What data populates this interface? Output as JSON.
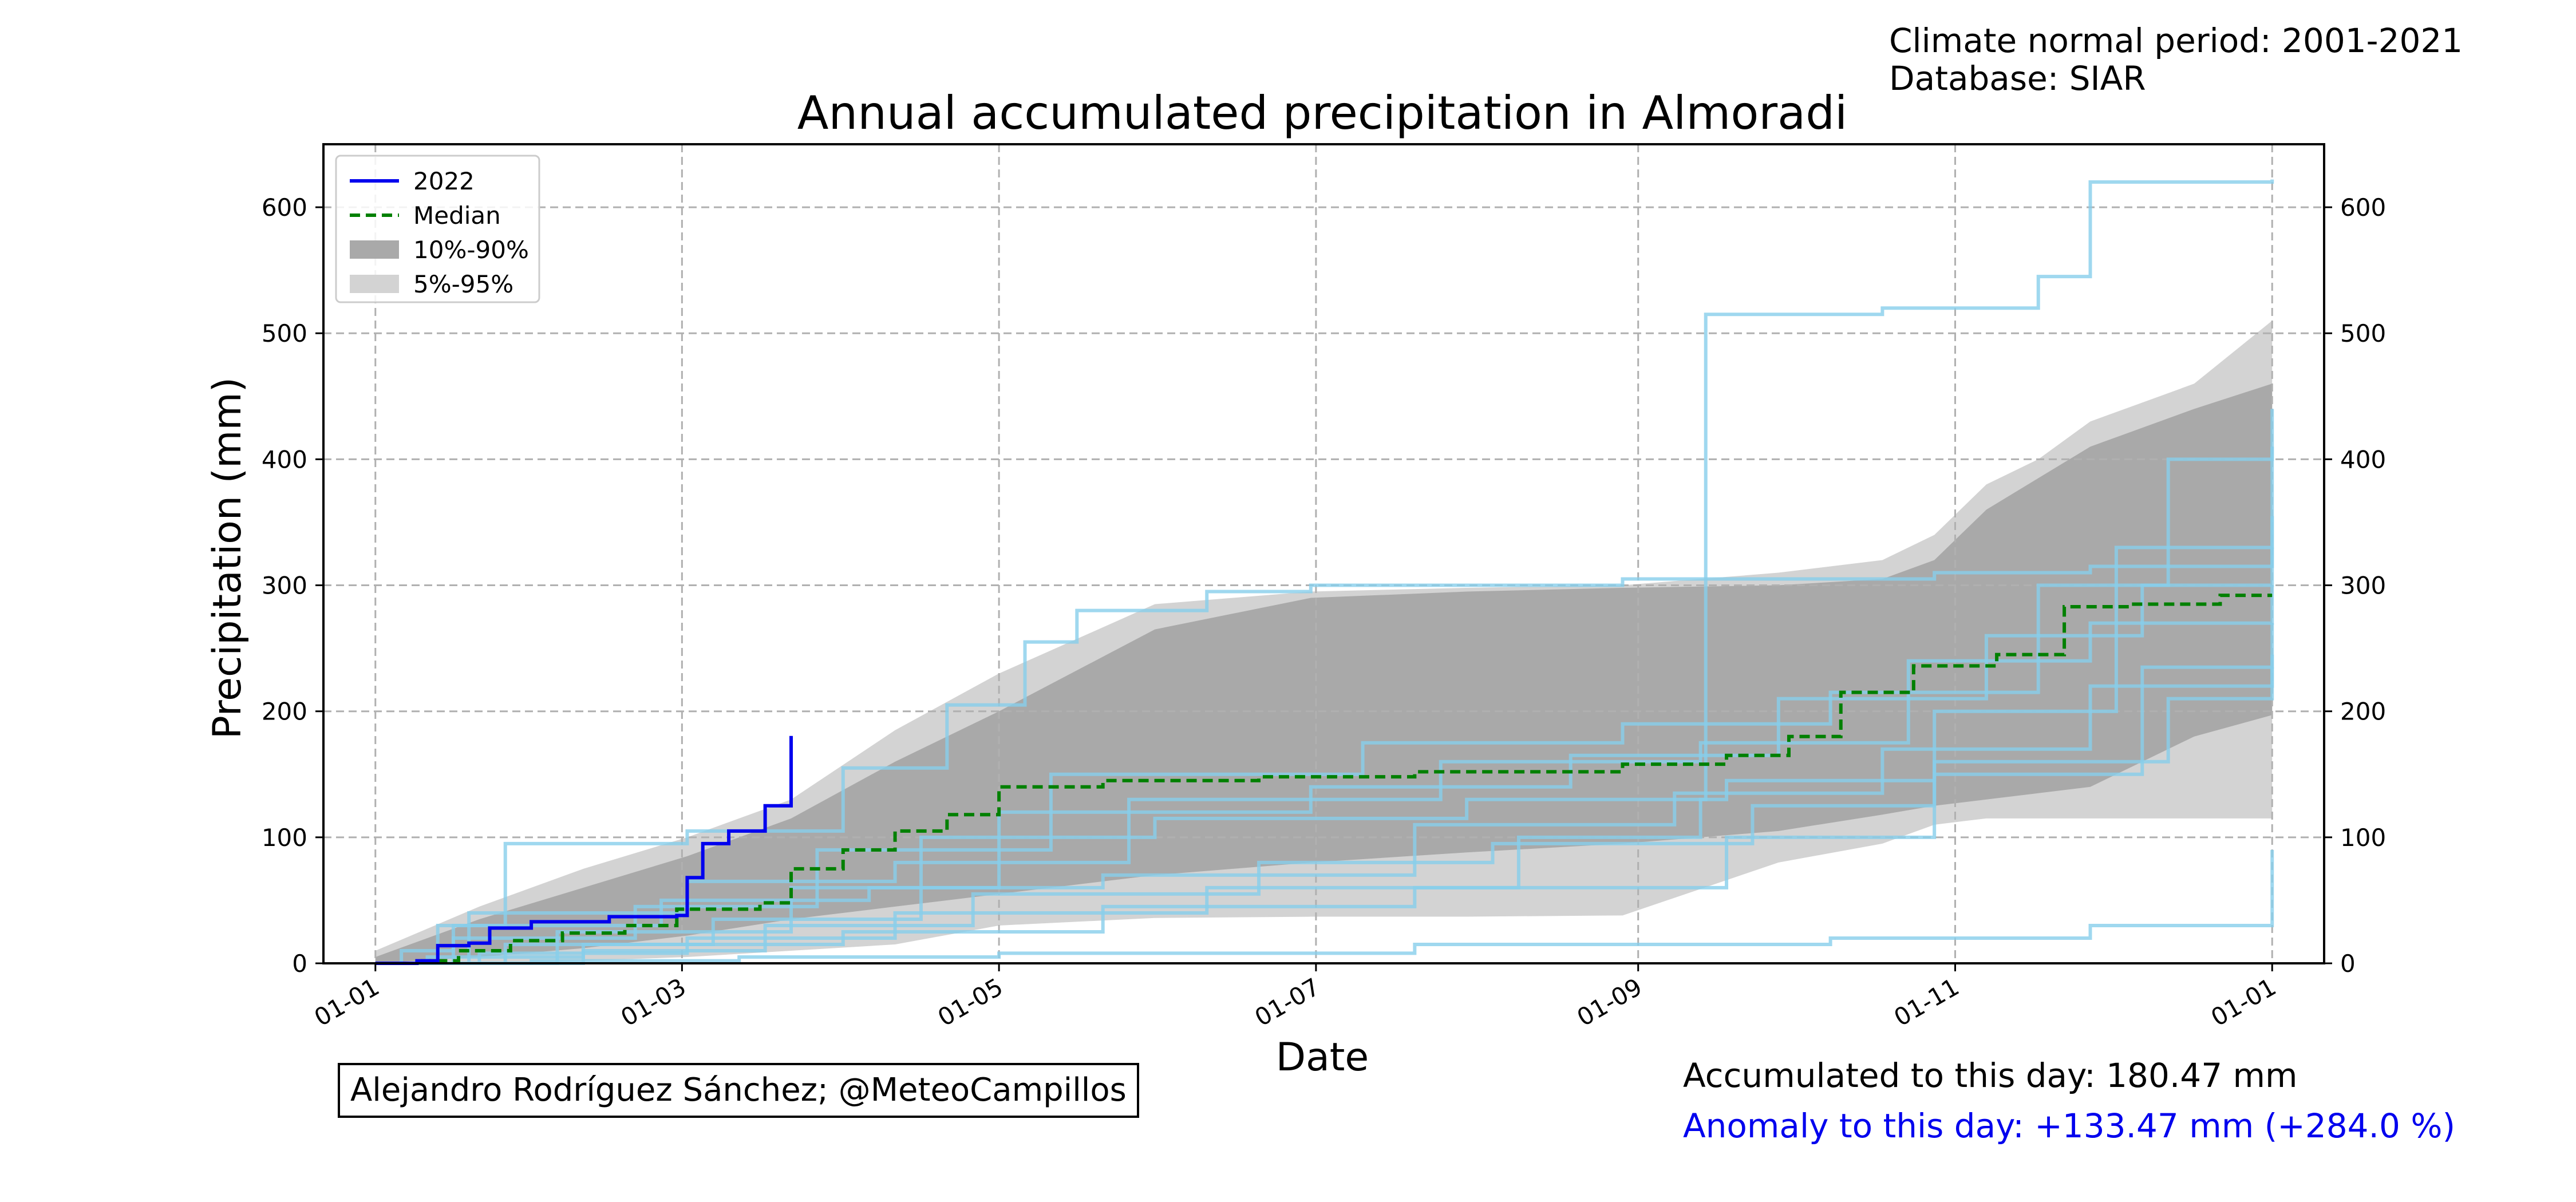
{
  "colors": {
    "current": "#0000ee",
    "median": "#008000",
    "band_inner": "#a9a9a9",
    "band_outer": "#d3d3d3",
    "history": "#87ceeb",
    "anomaly": "#0000ee"
  },
  "header": {
    "climate_period": "Climate normal period: 2001-2021",
    "database": "Database: SIAR"
  },
  "footer": {
    "credit": "Alejandro Rodríguez Sánchez; @MeteoCampillos",
    "accumulated": "Accumulated to this day: 180.47 mm",
    "anomaly": "Anomaly to this day: +133.47 mm (+284.0 %)"
  },
  "chart_data": {
    "type": "line",
    "title": "Annual accumulated precipitation in Almoradi",
    "xlabel": "Date",
    "ylabel": "Precipitation (mm)",
    "x_ticks": [
      "01-01",
      "01-03",
      "01-05",
      "01-07",
      "01-09",
      "01-11",
      "01-01"
    ],
    "x_tick_days": [
      0,
      59,
      120,
      181,
      243,
      304,
      365
    ],
    "y_ticks": [
      0,
      100,
      200,
      300,
      400,
      500,
      600
    ],
    "xlim": [
      -10,
      375
    ],
    "ylim": [
      0,
      650
    ],
    "grid": true,
    "legend_position": "top-left",
    "legend": [
      "2022",
      "Median",
      "10%-90%",
      "5%-95%"
    ],
    "series": [
      {
        "name": "2022",
        "x": [
          0,
          8,
          12,
          18,
          22,
          30,
          45,
          58,
          60,
          63,
          68,
          75,
          80
        ],
        "y": [
          0,
          2,
          14,
          16,
          28,
          33,
          37,
          38,
          68,
          95,
          105,
          125,
          180.47
        ]
      },
      {
        "name": "Median",
        "x": [
          0,
          8,
          16,
          26,
          36,
          48,
          58,
          74,
          80,
          90,
          100,
          110,
          120,
          140,
          170,
          200,
          240,
          260,
          272,
          282,
          296,
          312,
          325,
          338,
          355,
          365
        ],
        "y": [
          0,
          2,
          10,
          18,
          24,
          30,
          43,
          48,
          75,
          90,
          105,
          118,
          140,
          145,
          148,
          152,
          158,
          165,
          180,
          215,
          236,
          245,
          283,
          285,
          292,
          292
        ]
      }
    ],
    "bands": [
      {
        "name": "5%-95%",
        "x": [
          0,
          20,
          40,
          60,
          80,
          100,
          120,
          150,
          180,
          210,
          240,
          270,
          290,
          300,
          310,
          320,
          330,
          340,
          350,
          365
        ],
        "lower": [
          0,
          0,
          2,
          5,
          10,
          15,
          30,
          36,
          37,
          37,
          38,
          80,
          95,
          110,
          115,
          115,
          115,
          115,
          115,
          115
        ],
        "upper": [
          10,
          45,
          75,
          100,
          130,
          185,
          230,
          285,
          295,
          298,
          300,
          310,
          320,
          340,
          380,
          400,
          430,
          445,
          460,
          510
        ]
      },
      {
        "name": "10%-90%",
        "x": [
          0,
          20,
          40,
          60,
          80,
          100,
          120,
          150,
          180,
          210,
          240,
          270,
          290,
          300,
          310,
          320,
          330,
          340,
          350,
          365
        ],
        "lower": [
          0,
          5,
          12,
          22,
          35,
          45,
          55,
          70,
          80,
          88,
          95,
          105,
          118,
          125,
          130,
          135,
          140,
          160,
          180,
          197
        ],
        "upper": [
          5,
          35,
          60,
          85,
          115,
          160,
          200,
          265,
          290,
          295,
          298,
          300,
          305,
          320,
          360,
          385,
          410,
          425,
          440,
          460
        ]
      }
    ],
    "history_series": [
      {
        "x": [
          0,
          5,
          15,
          25,
          60,
          90,
          110,
          125,
          135,
          160,
          180,
          240,
          300,
          330,
          365
        ],
        "y": [
          0,
          10,
          30,
          95,
          105,
          155,
          205,
          255,
          280,
          295,
          300,
          305,
          310,
          315,
          330
        ]
      },
      {
        "x": [
          0,
          10,
          40,
          90,
          140,
          200,
          260,
          300,
          340,
          365
        ],
        "y": [
          0,
          5,
          15,
          25,
          45,
          60,
          100,
          150,
          235,
          245
        ]
      },
      {
        "x": [
          0,
          20,
          60,
          100,
          160,
          220,
          255,
          256,
          290,
          320,
          330,
          365
        ],
        "y": [
          0,
          8,
          20,
          40,
          60,
          100,
          130,
          515,
          520,
          545,
          620,
          622
        ]
      },
      {
        "x": [
          0,
          30,
          70,
          120,
          200,
          280,
          330,
          365
        ],
        "y": [
          0,
          2,
          5,
          8,
          15,
          20,
          30,
          90
        ]
      },
      {
        "x": [
          0,
          15,
          50,
          85,
          130,
          190,
          240,
          280,
          320,
          345,
          365
        ],
        "y": [
          0,
          20,
          45,
          90,
          150,
          175,
          190,
          215,
          300,
          400,
          410
        ]
      },
      {
        "x": [
          0,
          25,
          65,
          105,
          150,
          210,
          260,
          300,
          335,
          365
        ],
        "y": [
          0,
          15,
          35,
          100,
          115,
          130,
          145,
          200,
          330,
          440
        ]
      },
      {
        "x": [
          0,
          35,
          80,
          120,
          180,
          230,
          270,
          310,
          340,
          365
        ],
        "y": [
          0,
          25,
          60,
          120,
          140,
          165,
          210,
          260,
          300,
          355
        ]
      },
      {
        "x": [
          0,
          12,
          55,
          95,
          140,
          200,
          250,
          290,
          330,
          365
        ],
        "y": [
          0,
          30,
          50,
          60,
          70,
          110,
          135,
          170,
          220,
          235
        ]
      },
      {
        "x": [
          0,
          40,
          75,
          115,
          170,
          215,
          265,
          300,
          345,
          365
        ],
        "y": [
          0,
          10,
          30,
          55,
          80,
          95,
          125,
          160,
          210,
          270
        ]
      },
      {
        "x": [
          0,
          18,
          60,
          100,
          145,
          205,
          255,
          295,
          330,
          365
        ],
        "y": [
          0,
          40,
          65,
          80,
          130,
          160,
          175,
          240,
          270,
          300
        ]
      }
    ]
  }
}
